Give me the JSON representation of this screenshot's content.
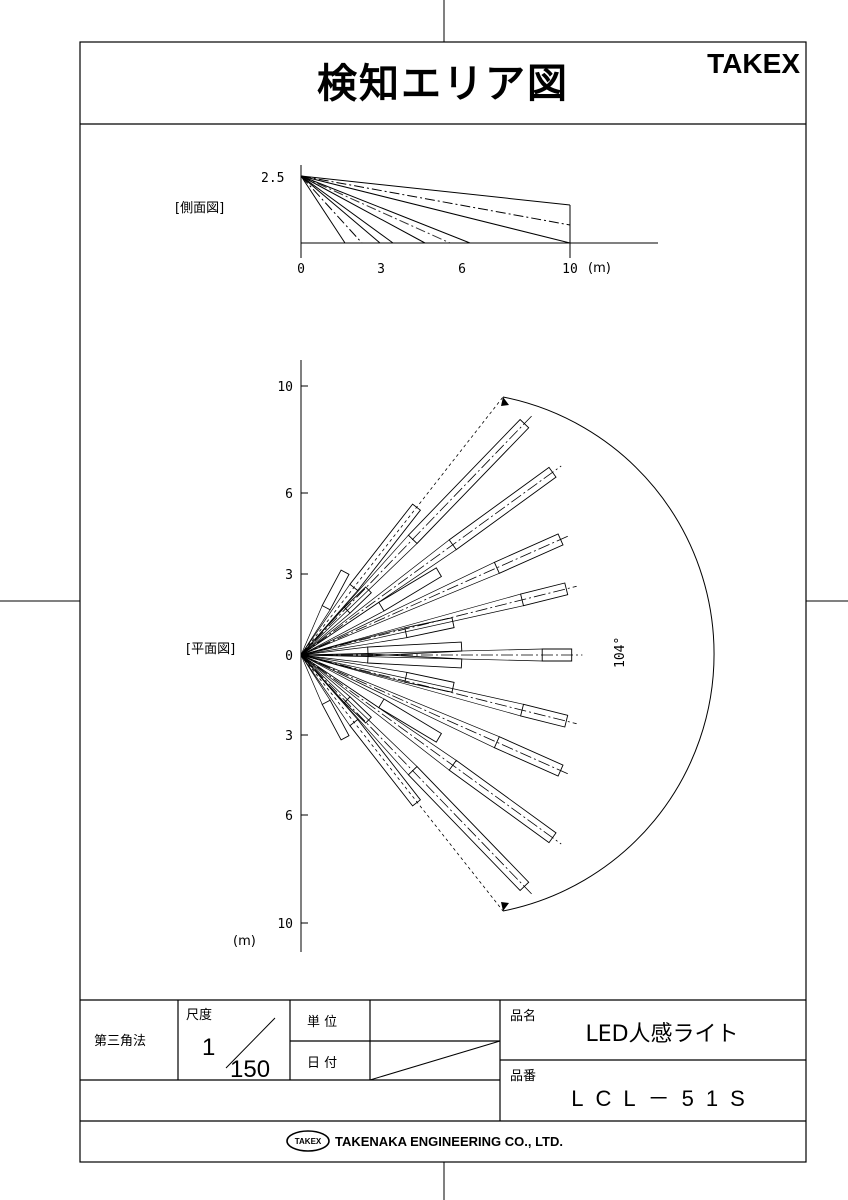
{
  "header": {
    "title": "検知エリア図",
    "brand": "TAKEX"
  },
  "side_view": {
    "label": "[側面図]",
    "height_label": "2.5",
    "x_ticks": [
      "0",
      "3",
      "6",
      "10"
    ],
    "unit": "(m)"
  },
  "plan_view": {
    "label": "[平面図]",
    "y_ticks": [
      "10",
      "6",
      "3",
      "0",
      "3",
      "6",
      "10"
    ],
    "unit": "(m)",
    "angle_label": "104°"
  },
  "title_block": {
    "projection": "第三角法",
    "scale_label": "尺度",
    "scale_numerator": "1",
    "scale_denominator": "150",
    "unit_label": "単 位",
    "date_label": "日 付",
    "product_name_label": "品名",
    "product_name": "LED人感ライト",
    "product_number_label": "品番",
    "product_number": "LCL－51S"
  },
  "footer": {
    "logo_text": "TAKEX",
    "company": "TAKENAKA ENGINEERING CO., LTD."
  }
}
